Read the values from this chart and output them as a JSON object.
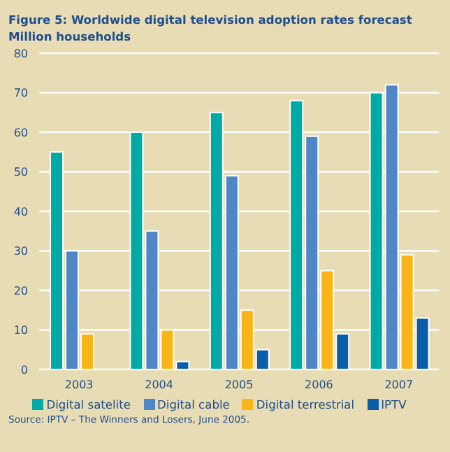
{
  "chart_data": {
    "type": "bar",
    "title": "Figure 5: Worldwide digital television adoption rates forecast",
    "ylabel": "Million households",
    "categories": [
      "2003",
      "2004",
      "2005",
      "2006",
      "2007"
    ],
    "series": [
      {
        "name": "Digital satelite",
        "color": "#00aba5",
        "values": [
          55,
          60,
          65,
          68,
          70
        ]
      },
      {
        "name": "Digital cable",
        "color": "#4f86c6",
        "values": [
          30,
          35,
          49,
          59,
          72
        ]
      },
      {
        "name": "Digital terrestrial",
        "color": "#f9b517",
        "values": [
          9,
          10,
          15,
          25,
          29
        ]
      },
      {
        "name": "IPTV",
        "color": "#0a5ea8",
        "values": [
          null,
          2,
          5,
          9,
          13
        ]
      }
    ],
    "ylim": [
      0,
      80
    ],
    "yticks": [
      0,
      10,
      20,
      30,
      40,
      50,
      60,
      70,
      80
    ],
    "grid": "y",
    "legend": "bottom",
    "annotations": [
      "Source: IPTV – The Winners and Losers, June 2005."
    ]
  }
}
